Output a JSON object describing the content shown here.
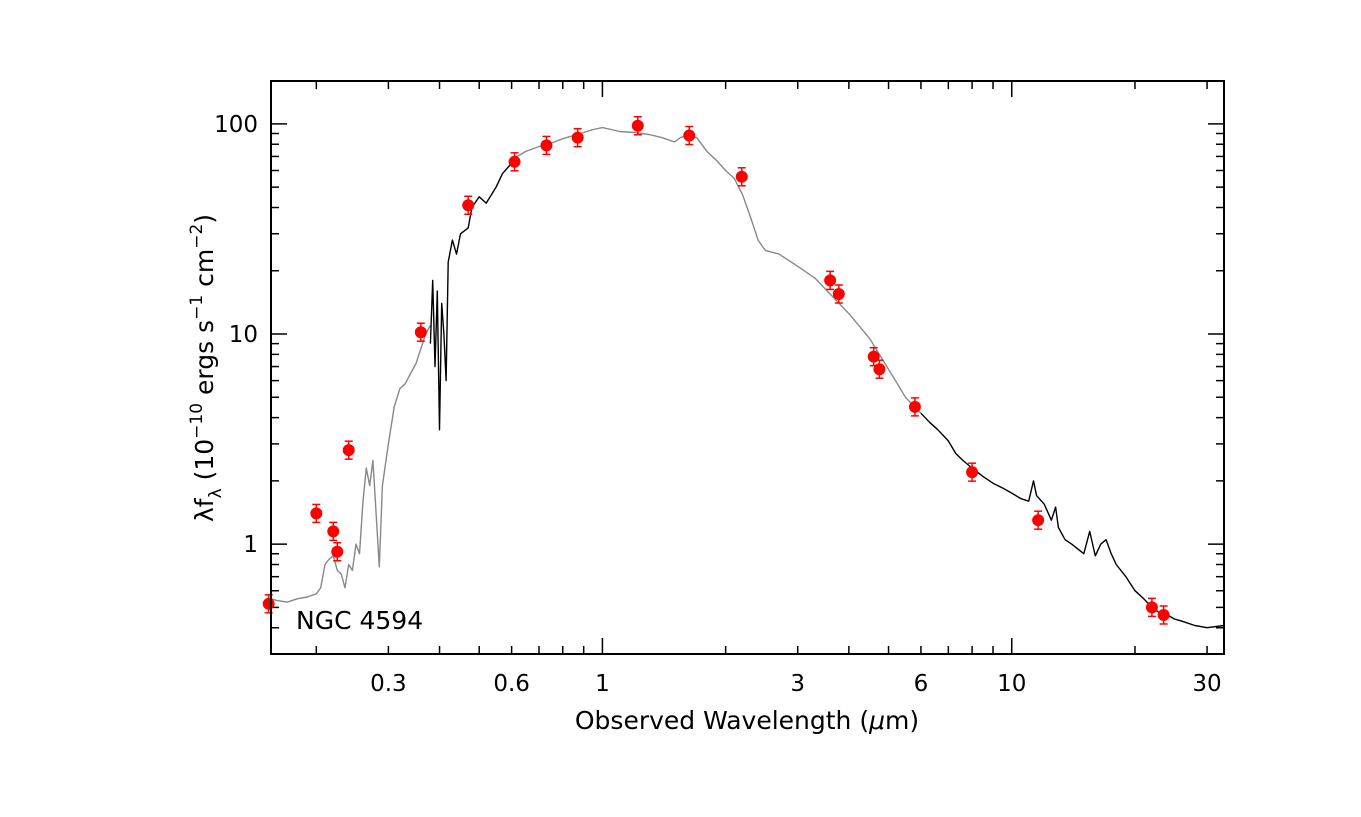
{
  "chart_data": {
    "type": "scatter",
    "annotation": "NGC 4594",
    "xlabel_prefix": "Observed Wavelength (",
    "xlabel_mu": "μ",
    "xlabel_suffix": "m)",
    "ylabel_main": "λf",
    "ylabel_sub": "λ",
    "ylabel_open": " (10",
    "ylabel_exp1": "−10",
    "ylabel_mid": " ergs s",
    "ylabel_exp2": "−1",
    "ylabel_cm": " cm",
    "ylabel_exp3": "−2",
    "ylabel_close": ")",
    "x_scale": "log",
    "y_scale": "log",
    "xlim": [
      0.155,
      33
    ],
    "ylim": [
      0.3,
      160
    ],
    "x_ticks": [
      {
        "value": 0.3,
        "label": "0.3"
      },
      {
        "value": 0.6,
        "label": "0.6"
      },
      {
        "value": 1,
        "label": "1"
      },
      {
        "value": 3,
        "label": "3"
      },
      {
        "value": 6,
        "label": "6"
      },
      {
        "value": 10,
        "label": "10"
      },
      {
        "value": 30,
        "label": "30"
      }
    ],
    "y_ticks": [
      {
        "value": 1,
        "label": "1"
      },
      {
        "value": 10,
        "label": "10"
      },
      {
        "value": 100,
        "label": "100"
      }
    ],
    "grid": false,
    "point_color": "#ff0000",
    "series": [
      {
        "kind": "spectrum-gray",
        "color": "#888888",
        "segments": [
          [
            [
              0.155,
              0.55
            ],
            [
              0.16,
              0.54
            ],
            [
              0.17,
              0.53
            ],
            [
              0.18,
              0.55
            ],
            [
              0.19,
              0.56
            ],
            [
              0.2,
              0.58
            ],
            [
              0.205,
              0.62
            ],
            [
              0.21,
              0.8
            ],
            [
              0.215,
              0.85
            ],
            [
              0.22,
              0.88
            ],
            [
              0.225,
              0.75
            ],
            [
              0.23,
              0.72
            ],
            [
              0.235,
              0.62
            ],
            [
              0.24,
              0.8
            ],
            [
              0.245,
              0.75
            ],
            [
              0.25,
              1.0
            ],
            [
              0.255,
              0.9
            ],
            [
              0.26,
              1.6
            ],
            [
              0.265,
              2.3
            ],
            [
              0.27,
              1.9
            ],
            [
              0.275,
              2.5
            ],
            [
              0.28,
              1.4
            ],
            [
              0.285,
              0.78
            ],
            [
              0.29,
              1.9
            ],
            [
              0.3,
              3.0
            ],
            [
              0.31,
              4.5
            ],
            [
              0.32,
              5.5
            ],
            [
              0.33,
              5.8
            ],
            [
              0.34,
              6.5
            ],
            [
              0.35,
              7.2
            ],
            [
              0.36,
              8.5
            ],
            [
              0.37,
              10.0
            ],
            [
              0.38,
              11.0
            ]
          ],
          [
            [
              0.62,
              70
            ],
            [
              0.65,
              74
            ],
            [
              0.7,
              78
            ],
            [
              0.75,
              81
            ],
            [
              0.8,
              85
            ],
            [
              0.85,
              88
            ],
            [
              0.9,
              91
            ],
            [
              0.95,
              94
            ],
            [
              1.0,
              96
            ],
            [
              1.05,
              94
            ],
            [
              1.1,
              92
            ],
            [
              1.2,
              91
            ],
            [
              1.3,
              89
            ],
            [
              1.4,
              86
            ],
            [
              1.5,
              82
            ],
            [
              1.55,
              86
            ],
            [
              1.6,
              88
            ],
            [
              1.7,
              86
            ],
            [
              1.8,
              74
            ],
            [
              1.9,
              67
            ],
            [
              2.0,
              60
            ],
            [
              2.1,
              55
            ],
            [
              2.2,
              46
            ],
            [
              2.3,
              36
            ],
            [
              2.4,
              28
            ],
            [
              2.5,
              25
            ],
            [
              2.7,
              24
            ],
            [
              3.0,
              21
            ],
            [
              3.3,
              18.5
            ],
            [
              3.6,
              15.5
            ],
            [
              4.0,
              12.5
            ],
            [
              4.5,
              9.5
            ],
            [
              5.0,
              6.8
            ],
            [
              5.5,
              5.0
            ],
            [
              6.0,
              4.2
            ]
          ]
        ]
      },
      {
        "kind": "spectrum-black",
        "color": "#000000",
        "segments": [
          [
            [
              0.38,
              9.0
            ],
            [
              0.385,
              18
            ],
            [
              0.39,
              7
            ],
            [
              0.395,
              16
            ],
            [
              0.4,
              3.5
            ],
            [
              0.405,
              14
            ],
            [
              0.41,
              10
            ],
            [
              0.415,
              6.0
            ],
            [
              0.42,
              22
            ],
            [
              0.43,
              28
            ],
            [
              0.44,
              24
            ],
            [
              0.45,
              30
            ],
            [
              0.47,
              32
            ],
            [
              0.48,
              40
            ],
            [
              0.5,
              45
            ],
            [
              0.52,
              42
            ],
            [
              0.55,
              50
            ],
            [
              0.57,
              58
            ],
            [
              0.6,
              65
            ],
            [
              0.62,
              70
            ]
          ],
          [
            [
              6.0,
              4.2
            ],
            [
              6.3,
              3.8
            ],
            [
              6.6,
              3.5
            ],
            [
              7.0,
              3.1
            ],
            [
              7.3,
              2.7
            ],
            [
              7.6,
              2.5
            ],
            [
              8.0,
              2.3
            ],
            [
              8.5,
              2.1
            ],
            [
              9.0,
              1.95
            ],
            [
              9.5,
              1.85
            ],
            [
              10.0,
              1.75
            ],
            [
              10.5,
              1.65
            ],
            [
              11.0,
              1.6
            ],
            [
              11.3,
              2.0
            ],
            [
              11.5,
              1.7
            ],
            [
              12.0,
              1.55
            ],
            [
              12.5,
              1.3
            ],
            [
              12.8,
              1.5
            ],
            [
              13.0,
              1.2
            ],
            [
              13.5,
              1.05
            ],
            [
              14.0,
              1.0
            ],
            [
              15.0,
              0.9
            ],
            [
              15.5,
              1.15
            ],
            [
              16.0,
              0.88
            ],
            [
              16.5,
              1.0
            ],
            [
              17.0,
              1.05
            ],
            [
              17.5,
              0.9
            ],
            [
              18.0,
              0.8
            ],
            [
              19.0,
              0.7
            ],
            [
              20.0,
              0.6
            ],
            [
              21.0,
              0.55
            ],
            [
              22.0,
              0.5
            ],
            [
              23.0,
              0.47
            ],
            [
              24.0,
              0.46
            ],
            [
              25.0,
              0.44
            ],
            [
              26.0,
              0.43
            ],
            [
              28.0,
              0.41
            ],
            [
              30.0,
              0.4
            ],
            [
              33.0,
              0.41
            ]
          ]
        ]
      },
      {
        "kind": "photometry",
        "name": "",
        "points": [
          {
            "x": 0.153,
            "y": 0.52
          },
          {
            "x": 0.2,
            "y": 1.4
          },
          {
            "x": 0.22,
            "y": 1.15
          },
          {
            "x": 0.225,
            "y": 0.92
          },
          {
            "x": 0.24,
            "y": 2.8
          },
          {
            "x": 0.36,
            "y": 10.2
          },
          {
            "x": 0.47,
            "y": 41
          },
          {
            "x": 0.61,
            "y": 66
          },
          {
            "x": 0.73,
            "y": 79
          },
          {
            "x": 0.87,
            "y": 86
          },
          {
            "x": 1.22,
            "y": 98
          },
          {
            "x": 1.63,
            "y": 88
          },
          {
            "x": 2.19,
            "y": 56
          },
          {
            "x": 3.6,
            "y": 18
          },
          {
            "x": 3.78,
            "y": 15.5
          },
          {
            "x": 4.6,
            "y": 7.8
          },
          {
            "x": 4.75,
            "y": 6.8
          },
          {
            "x": 5.8,
            "y": 4.5
          },
          {
            "x": 8.0,
            "y": 2.2
          },
          {
            "x": 11.6,
            "y": 1.3
          },
          {
            "x": 22.0,
            "y": 0.5
          },
          {
            "x": 23.5,
            "y": 0.46
          }
        ]
      }
    ]
  }
}
